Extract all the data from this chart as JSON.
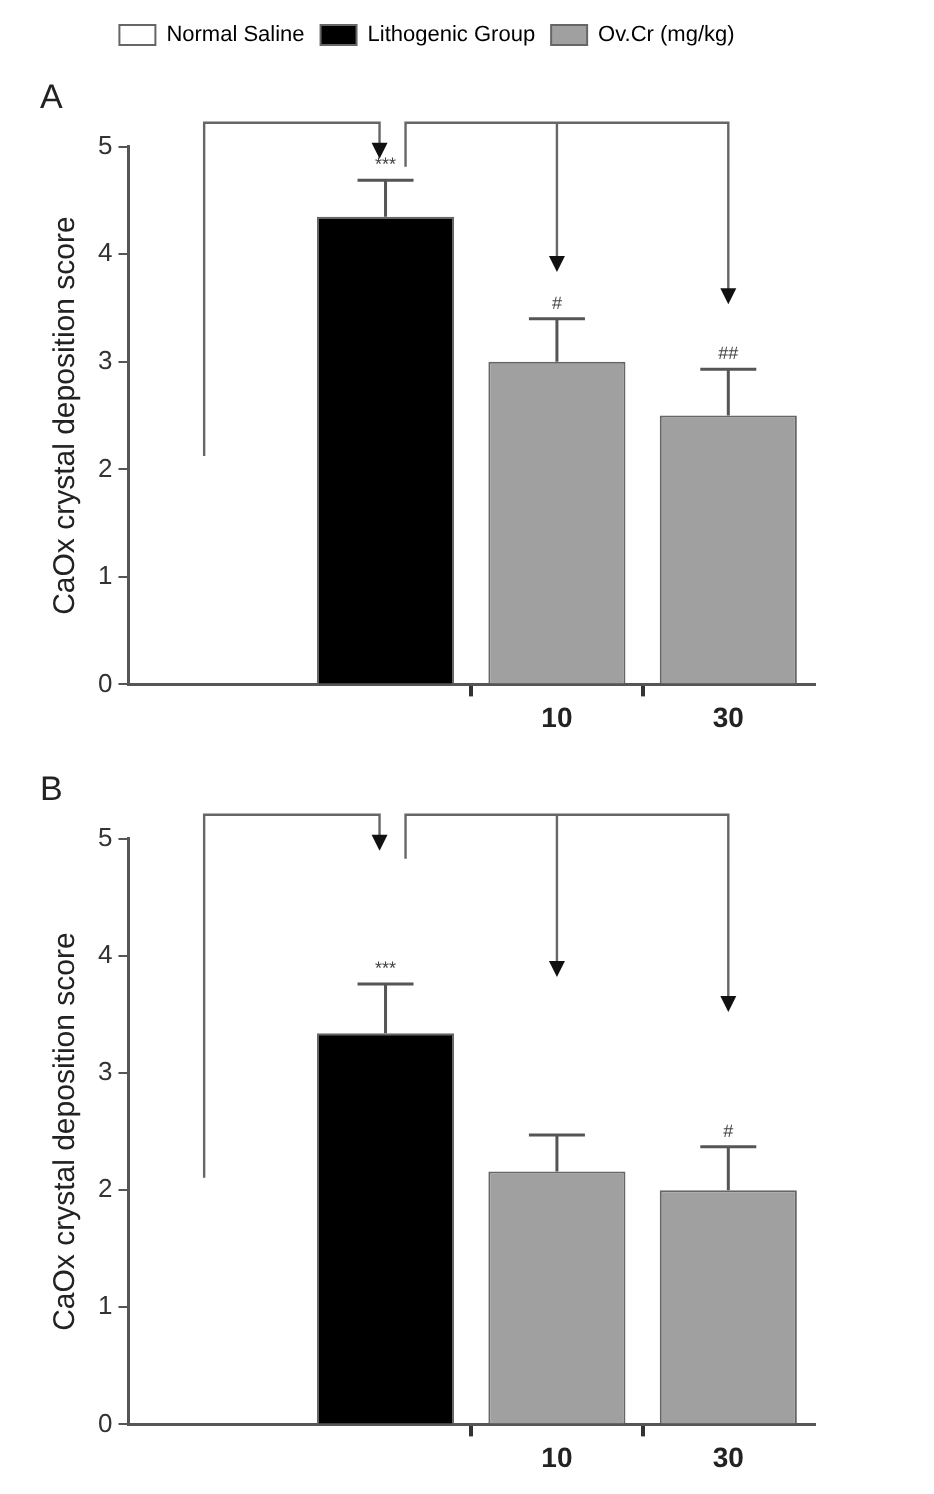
{
  "chart_data": [
    {
      "type": "bar",
      "title": "A",
      "ylabel": "CaOx crystal deposition score",
      "categories": [
        null,
        null,
        "10",
        "30"
      ],
      "ylim": [
        0,
        5
      ],
      "yticks": [
        0,
        1,
        2,
        3,
        4,
        5
      ],
      "grid": false,
      "legend": "top",
      "series": [
        {
          "name": "Normal Saline",
          "color": "#ffffff",
          "values": [
            0,
            null,
            null,
            null
          ]
        },
        {
          "name": "Lithogenic Group",
          "color": "#000000",
          "values": [
            null,
            4.35,
            null,
            null
          ],
          "errors": [
            null,
            0.34,
            null,
            null
          ]
        },
        {
          "name": "Ov.Cr (mg/kg)",
          "color": "#a0a0a0",
          "values": [
            null,
            null,
            3.0,
            2.5
          ],
          "errors": [
            null,
            null,
            0.4,
            0.43
          ]
        }
      ],
      "annotations": [
        {
          "text": "***",
          "y": 4.69
        },
        {
          "text": "#",
          "x": "10",
          "y": 3.4
        },
        {
          "text": "##",
          "x": "30",
          "y": 2.93
        }
      ]
    },
    {
      "type": "bar",
      "title": "B",
      "ylabel": "CaOx crystal deposition score",
      "categories": [
        null,
        null,
        "10",
        "30"
      ],
      "ylim": [
        0,
        5
      ],
      "yticks": [
        0,
        1,
        2,
        3,
        4,
        5
      ],
      "grid": false,
      "legend": false,
      "series": [
        {
          "color": "#ffffff",
          "values": [
            0,
            null,
            null,
            null
          ]
        },
        {
          "color": "#000000",
          "values": [
            null,
            3.34,
            null,
            null
          ],
          "errors": [
            null,
            0.42,
            null,
            null
          ]
        },
        {
          "color": "#a0a0a0",
          "values": [
            null,
            null,
            2.16,
            2.0
          ],
          "errors": [
            null,
            null,
            0.31,
            0.37
          ]
        }
      ],
      "annotations": [
        {
          "text": "***",
          "y": 3.76
        },
        {
          "text": "#",
          "x": "30",
          "y": 2.37
        }
      ]
    }
  ]
}
